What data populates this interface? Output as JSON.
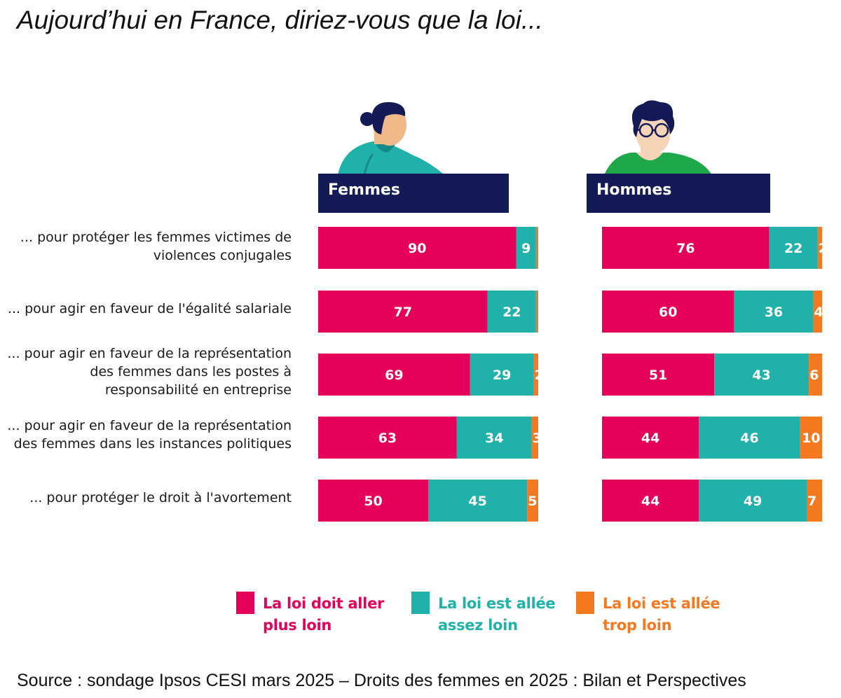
{
  "title": "Aujourd’hui en France, diriez-vous que la loi...",
  "source": "Source : sondage Ipsos CESI mars 2025 – Droits des femmes en 2025 : Bilan et Perspectives",
  "colors": {
    "pink": "#e5005a",
    "teal": "#20b2aa",
    "orange": "#f47920",
    "navy": "#141a55"
  },
  "chart_data": {
    "type": "bar",
    "orientation": "horizontal",
    "stacked": true,
    "title": "Aujourd’hui en France, diriez-vous que la loi...",
    "panels": [
      "Femmes",
      "Hommes"
    ],
    "categories": [
      [
        "... pour protéger les femmes victimes de",
        "violences conjugales"
      ],
      [
        "... pour agir en faveur de l'égalité salariale"
      ],
      [
        "... pour agir en faveur de la représentation",
        "des femmes dans les postes à",
        "responsabilité en entreprise"
      ],
      [
        "... pour agir en faveur de la représentation",
        "des femmes dans les instances politiques"
      ],
      [
        "... pour protéger le droit à l'avortement"
      ]
    ],
    "series": [
      {
        "name": "La loi doit aller plus loin",
        "legend_lines": [
          "La loi doit aller",
          "plus loin"
        ],
        "color": "#e5005a",
        "values": {
          "Femmes": [
            90,
            77,
            69,
            63,
            50
          ],
          "Hommes": [
            76,
            60,
            51,
            44,
            44
          ]
        }
      },
      {
        "name": "La loi est allée assez loin",
        "legend_lines": [
          "La loi est allée",
          "assez loin"
        ],
        "color": "#20b2aa",
        "values": {
          "Femmes": [
            9,
            22,
            29,
            34,
            45
          ],
          "Hommes": [
            22,
            36,
            43,
            46,
            49
          ]
        }
      },
      {
        "name": "La loi est allée trop loin",
        "legend_lines": [
          "La loi est allée",
          "trop loin"
        ],
        "color": "#f47920",
        "values": {
          "Femmes": [
            1,
            1,
            2,
            3,
            5
          ],
          "Hommes": [
            2,
            4,
            6,
            10,
            7
          ]
        }
      }
    ],
    "unit": "%",
    "legend_position": "bottom"
  }
}
